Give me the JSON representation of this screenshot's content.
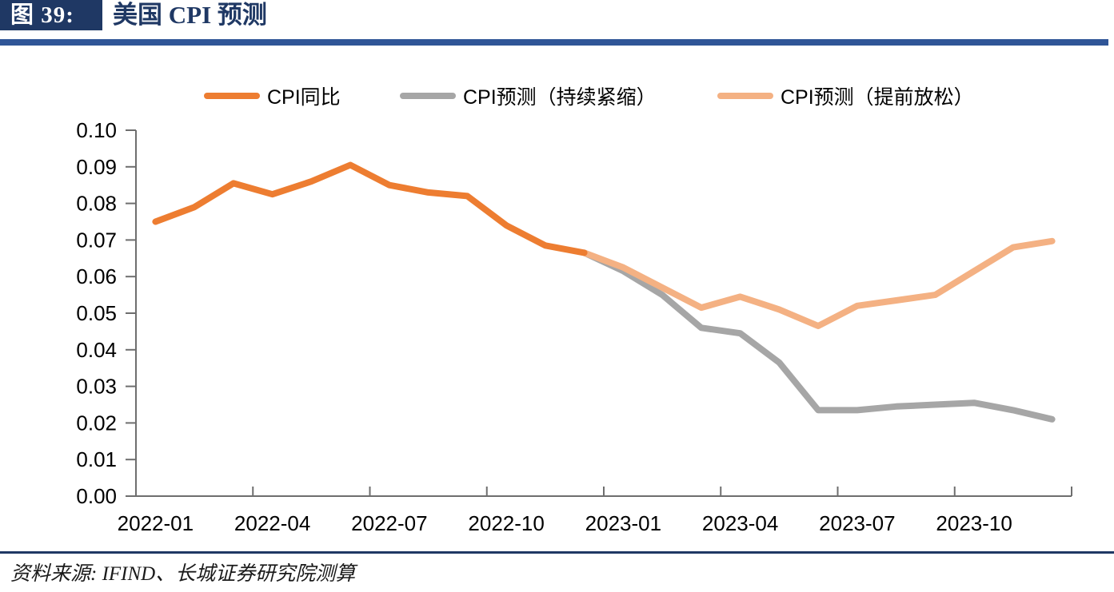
{
  "header": {
    "figure_label": "图 39:",
    "title": "美国 CPI 预测"
  },
  "source_note": "资料来源: IFIND、长城证券研究院测算",
  "colors": {
    "accent_navy": "#1F3864",
    "title_rule_blue": "#2F5597",
    "axis_gray": "#6E6E6E",
    "series_actual_orange": "#ED7D31",
    "series_tightening_gray": "#A6A6A6",
    "series_easing_peach": "#F4B183"
  },
  "chart_data": {
    "type": "line",
    "title": "美国 CPI 预测",
    "grid": false,
    "legend_position": "top",
    "ylim": [
      0,
      0.1
    ],
    "y_tick_step": 0.01,
    "y_tick_labels": [
      "0.00",
      "0.01",
      "0.02",
      "0.03",
      "0.04",
      "0.05",
      "0.06",
      "0.07",
      "0.08",
      "0.09",
      "0.10"
    ],
    "x_months": [
      "2022-01",
      "2022-02",
      "2022-03",
      "2022-04",
      "2022-05",
      "2022-06",
      "2022-07",
      "2022-08",
      "2022-09",
      "2022-10",
      "2022-11",
      "2022-12",
      "2023-01",
      "2023-02",
      "2023-03",
      "2023-04",
      "2023-05",
      "2023-06",
      "2023-07",
      "2023-08",
      "2023-09",
      "2023-10",
      "2023-11",
      "2023-12"
    ],
    "x_tick_labels": [
      "2022-01",
      "2022-04",
      "2022-07",
      "2022-10",
      "2023-01",
      "2023-04",
      "2023-07",
      "2023-10"
    ],
    "series": [
      {
        "name": "CPI同比",
        "color": "#ED7D31",
        "x": [
          "2022-01",
          "2022-02",
          "2022-03",
          "2022-04",
          "2022-05",
          "2022-06",
          "2022-07",
          "2022-08",
          "2022-09",
          "2022-10",
          "2022-11",
          "2022-12"
        ],
        "values": [
          0.075,
          0.079,
          0.0855,
          0.0825,
          0.086,
          0.0905,
          0.085,
          0.083,
          0.082,
          0.074,
          0.0685,
          0.0665
        ]
      },
      {
        "name": "CPI预测（持续紧缩）",
        "color": "#A6A6A6",
        "x": [
          "2022-12",
          "2023-01",
          "2023-02",
          "2023-03",
          "2023-04",
          "2023-05",
          "2023-06",
          "2023-07",
          "2023-08",
          "2023-09",
          "2023-10",
          "2023-11",
          "2023-12"
        ],
        "values": [
          0.0665,
          0.0615,
          0.055,
          0.046,
          0.0445,
          0.0365,
          0.0235,
          0.0235,
          0.0245,
          0.025,
          0.0255,
          0.0235,
          0.021
        ]
      },
      {
        "name": "CPI预测（提前放松）",
        "color": "#F4B183",
        "x": [
          "2022-12",
          "2023-01",
          "2023-02",
          "2023-03",
          "2023-04",
          "2023-05",
          "2023-06",
          "2023-07",
          "2023-08",
          "2023-09",
          "2023-10",
          "2023-11",
          "2023-12"
        ],
        "values": [
          0.0665,
          0.0625,
          0.057,
          0.0515,
          0.0545,
          0.051,
          0.0465,
          0.052,
          0.0535,
          0.055,
          0.0615,
          0.068,
          0.0697
        ]
      }
    ]
  }
}
